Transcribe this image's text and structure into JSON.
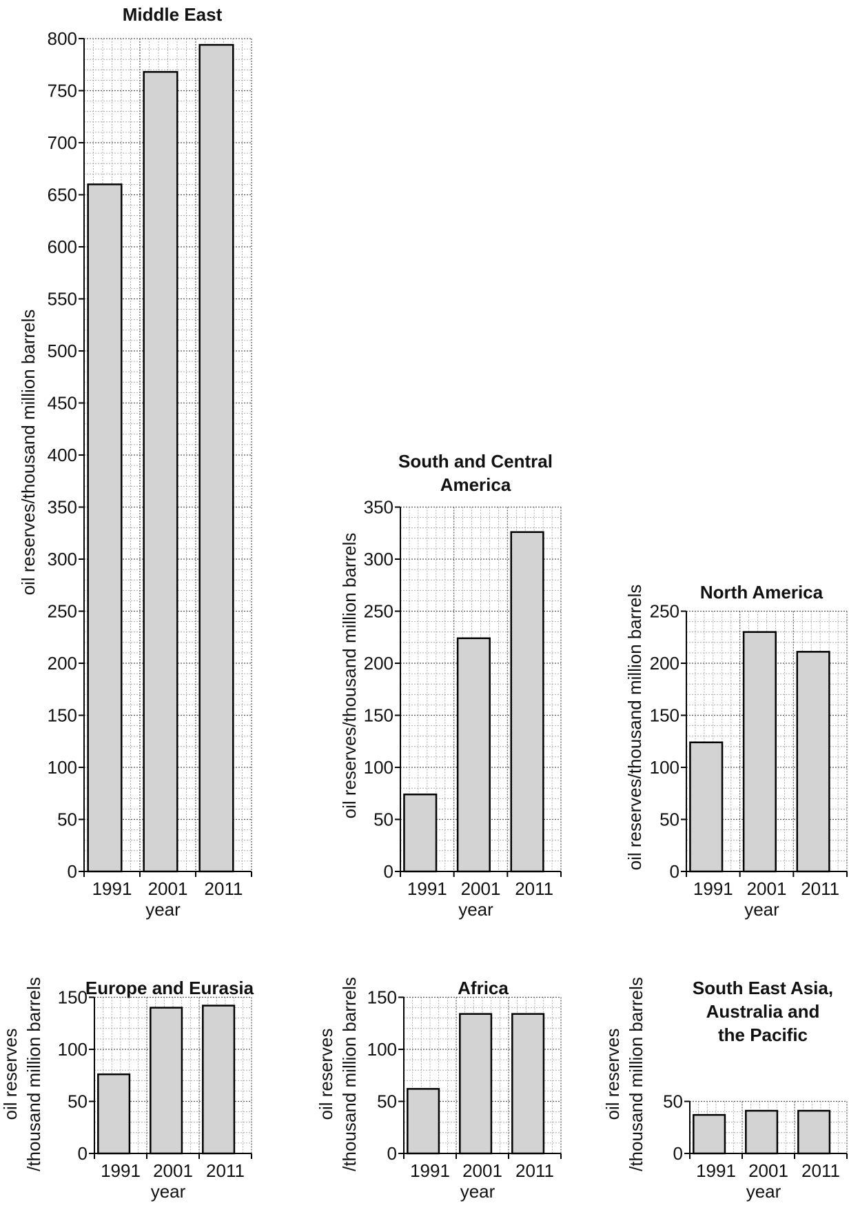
{
  "chart_data": [
    {
      "type": "bar",
      "title": [
        "Middle East"
      ],
      "ylabel": [
        "oil reserves/thousand million barrels"
      ],
      "xlabel": "year",
      "categories": [
        "1991",
        "2001",
        "2011"
      ],
      "values": [
        660,
        768,
        794
      ],
      "ylim": [
        0,
        800
      ],
      "yticks": [
        0,
        50,
        100,
        150,
        200,
        250,
        300,
        350,
        400,
        450,
        500,
        550,
        600,
        650,
        700,
        750,
        800
      ],
      "grid": true
    },
    {
      "type": "bar",
      "title": [
        "South and Central",
        "America"
      ],
      "ylabel": [
        "oil reserves/thousand million barrels"
      ],
      "xlabel": "year",
      "categories": [
        "1991",
        "2001",
        "2011"
      ],
      "values": [
        74,
        224,
        326
      ],
      "ylim": [
        0,
        350
      ],
      "yticks": [
        0,
        50,
        100,
        150,
        200,
        250,
        300,
        350
      ],
      "grid": true
    },
    {
      "type": "bar",
      "title": [
        "North America"
      ],
      "ylabel": [
        "oil reserves/thousand million barrels"
      ],
      "xlabel": "year",
      "categories": [
        "1991",
        "2001",
        "2011"
      ],
      "values": [
        124,
        230,
        211
      ],
      "ylim": [
        0,
        250
      ],
      "yticks": [
        0,
        50,
        100,
        150,
        200,
        250
      ],
      "grid": true
    },
    {
      "type": "bar",
      "title": [
        "Europe and Eurasia"
      ],
      "ylabel": [
        "oil reserves",
        "/thousand million barrels"
      ],
      "xlabel": "year",
      "categories": [
        "1991",
        "2001",
        "2011"
      ],
      "values": [
        76,
        140,
        142
      ],
      "ylim": [
        0,
        150
      ],
      "yticks": [
        0,
        50,
        100,
        150
      ],
      "grid": true
    },
    {
      "type": "bar",
      "title": [
        "Africa"
      ],
      "ylabel": [
        "oil reserves",
        "/thousand million barrels"
      ],
      "xlabel": "year",
      "categories": [
        "1991",
        "2001",
        "2011"
      ],
      "values": [
        62,
        134,
        134
      ],
      "ylim": [
        0,
        150
      ],
      "yticks": [
        0,
        50,
        100,
        150
      ],
      "grid": true
    },
    {
      "type": "bar",
      "title": [
        "South East Asia,",
        "Australia and",
        "the Pacific"
      ],
      "ylabel": [
        "oil reserves",
        "/thousand million barrels"
      ],
      "xlabel": "year",
      "categories": [
        "1991",
        "2001",
        "2011"
      ],
      "values": [
        37,
        41,
        41
      ],
      "ylim": [
        0,
        50
      ],
      "yticks": [
        0,
        50
      ],
      "grid": true
    }
  ]
}
